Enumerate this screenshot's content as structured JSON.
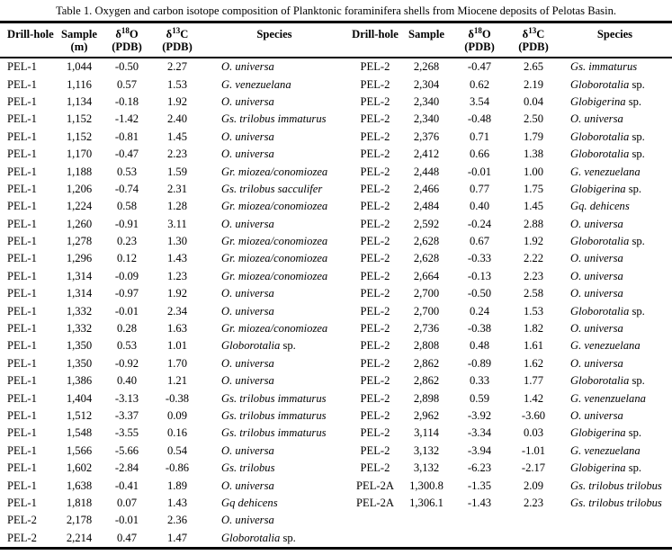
{
  "caption": "Table 1. Oxygen and carbon isotope composition of Planktonic foraminifera shells from Miocene deposits of Pelotas Basin.",
  "header": {
    "drill_hole": "Drill-hole",
    "sample": "Sample",
    "sample_unit_left": "(m)",
    "d18o": {
      "delta": "δ",
      "sup": "18",
      "el": "O",
      "unit": "(PDB)"
    },
    "d13c": {
      "delta": "δ",
      "sup": "13",
      "el": "C",
      "unit": "(PDB)"
    },
    "species": "Species"
  },
  "table": {
    "columns": [
      "Drill-hole",
      "Sample (m)",
      "δ18O (PDB)",
      "δ13C (PDB)",
      "Species"
    ],
    "left_rows": [
      [
        "PEL-1",
        "1,044",
        "-0.50",
        "2.27",
        "O. universa"
      ],
      [
        "PEL-1",
        "1,116",
        "0.57",
        "1.53",
        "G. venezuelana"
      ],
      [
        "PEL-1",
        "1,134",
        "-0.18",
        "1.92",
        "O. universa"
      ],
      [
        "PEL-1",
        "1,152",
        "-1.42",
        "2.40",
        "Gs. trilobus  immaturus"
      ],
      [
        "PEL-1",
        "1,152",
        "-0.81",
        "1.45",
        "O. universa"
      ],
      [
        "PEL-1",
        "1,170",
        "-0.47",
        "2.23",
        "O. universa"
      ],
      [
        "PEL-1",
        "1,188",
        "0.53",
        "1.59",
        "Gr. miozea/conomiozea"
      ],
      [
        "PEL-1",
        "1,206",
        "-0.74",
        "2.31",
        "Gs. trilobus sacculifer"
      ],
      [
        "PEL-1",
        "1,224",
        "0.58",
        "1.28",
        "Gr. miozea/conomiozea"
      ],
      [
        "PEL-1",
        "1,260",
        "-0.91",
        "3.11",
        "O. universa"
      ],
      [
        "PEL-1",
        "1,278",
        "0.23",
        "1.30",
        "Gr. miozea/conomiozea"
      ],
      [
        "PEL-1",
        "1,296",
        "0.12",
        "1.43",
        "Gr. miozea/conomiozea"
      ],
      [
        "PEL-1",
        "1,314",
        "-0.09",
        "1.23",
        "Gr. miozea/conomiozea"
      ],
      [
        "PEL-1",
        "1,314",
        "-0.97",
        "1.92",
        "O. universa"
      ],
      [
        "PEL-1",
        "1,332",
        "-0.01",
        "2.34",
        "O.  universa"
      ],
      [
        "PEL-1",
        "1,332",
        "0.28",
        "1.63",
        "Gr. miozea/conomiozea"
      ],
      [
        "PEL-1",
        "1,350",
        "0.53",
        "1.01",
        "Globorotalia sp."
      ],
      [
        "PEL-1",
        "1,350",
        "-0.92",
        "1.70",
        "O. universa"
      ],
      [
        "PEL-1",
        "1,386",
        "0.40",
        "1.21",
        "O. universa"
      ],
      [
        "PEL-1",
        "1,404",
        "-3.13",
        "-0.38",
        "Gs. trilobus immaturus"
      ],
      [
        "PEL-1",
        "1,512",
        "-3.37",
        "0.09",
        "Gs. trilobus immaturus"
      ],
      [
        "PEL-1",
        "1,548",
        "-3.55",
        "0.16",
        "Gs. trilobus immaturus"
      ],
      [
        "PEL-1",
        "1,566",
        "-5.66",
        "0.54",
        "O. universa"
      ],
      [
        "PEL-1",
        "1,602",
        "-2.84",
        "-0.86",
        "Gs. trilobus"
      ],
      [
        "PEL-1",
        "1,638",
        "-0.41",
        "1.89",
        "O. universa"
      ],
      [
        "PEL-1",
        "1,818",
        "0.07",
        "1.43",
        "Gq dehicens"
      ],
      [
        "PEL-2",
        "2,178",
        "-0.01",
        "2.36",
        "O. universa"
      ],
      [
        "PEL-2",
        "2,214",
        "0.47",
        "1.47",
        "Globorotalia sp."
      ]
    ],
    "right_rows": [
      [
        "PEL-2",
        "2,268",
        "-0.47",
        "2.65",
        "Gs. immaturus"
      ],
      [
        "PEL-2",
        "2,304",
        "0.62",
        "2.19",
        "Globorotalia sp."
      ],
      [
        "PEL-2",
        "2,340",
        "3.54",
        "0.04",
        "Globigerina sp."
      ],
      [
        "PEL-2",
        "2,340",
        "-0.48",
        "2.50",
        "O. universa"
      ],
      [
        "PEL-2",
        "2,376",
        "0.71",
        "1.79",
        "Globorotalia sp."
      ],
      [
        "PEL-2",
        "2,412",
        "0.66",
        "1.38",
        "Globorotalia sp."
      ],
      [
        "PEL-2",
        "2,448",
        "-0.01",
        "1.00",
        "G. venezuelana"
      ],
      [
        "PEL-2",
        "2,466",
        "0.77",
        "1.75",
        "Globigerina sp."
      ],
      [
        "PEL-2",
        "2,484",
        "0.40",
        "1.45",
        "Gq. dehicens"
      ],
      [
        "PEL-2",
        "2,592",
        "-0.24",
        "2.88",
        "O. universa"
      ],
      [
        "PEL-2",
        "2,628",
        "0.67",
        "1.92",
        "Globorotalia sp."
      ],
      [
        "PEL-2",
        "2,628",
        "-0.33",
        "2.22",
        "O. universa"
      ],
      [
        "PEL-2",
        "2,664",
        "-0.13",
        "2.23",
        "O. universa"
      ],
      [
        "PEL-2",
        "2,700",
        "-0.50",
        "2.58",
        "O. universa"
      ],
      [
        "PEL-2",
        "2,700",
        "0.24",
        "1.53",
        "Globorotalia sp."
      ],
      [
        "PEL-2",
        "2,736",
        "-0.38",
        "1.82",
        "O. universa"
      ],
      [
        "PEL-2",
        "2,808",
        "0.48",
        "1.61",
        "G. venezuelana"
      ],
      [
        "PEL-2",
        "2,862",
        "-0.89",
        "1.62",
        "O. universa"
      ],
      [
        "PEL-2",
        "2,862",
        "0.33",
        "1.77",
        "Globorotalia sp."
      ],
      [
        "PEL-2",
        "2,898",
        "0.59",
        "1.42",
        "G. venenzuelana"
      ],
      [
        "PEL-2",
        "2,962",
        "-3.92",
        "-3.60",
        "O. universa"
      ],
      [
        "PEL-2",
        "3,114",
        "-3.34",
        "0.03",
        "Globigerina sp."
      ],
      [
        "PEL-2",
        "3,132",
        "-3.94",
        "-1.01",
        "G. venezuelana"
      ],
      [
        "PEL-2",
        "3,132",
        "-6.23",
        "-2.17",
        "Globigerina sp."
      ],
      [
        "PEL-2A",
        "1,300.8",
        "-1.35",
        "2.09",
        "Gs. trilobus trilobus"
      ],
      [
        "PEL-2A",
        "1,306.1",
        "-1.43",
        "2.23",
        "Gs. trilobus trilobus"
      ]
    ]
  }
}
